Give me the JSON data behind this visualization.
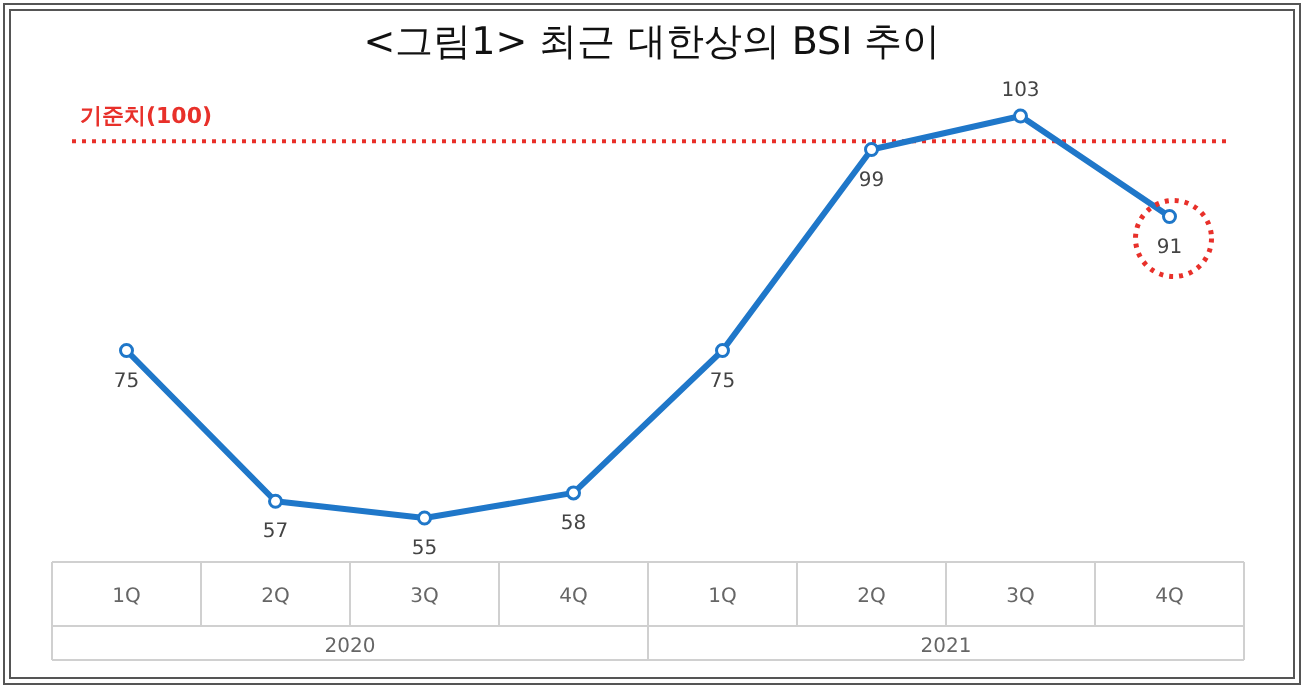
{
  "chart_data": {
    "type": "line",
    "title": "<그림1> 최근 대한상의 BSI 추이",
    "categories": [
      "1Q",
      "2Q",
      "3Q",
      "4Q",
      "1Q",
      "2Q",
      "3Q",
      "4Q"
    ],
    "series": [
      {
        "color": "#1f77c9",
        "values": [
          75,
          57,
          55,
          58,
          75,
          99,
          103,
          91
        ]
      }
    ],
    "annotations": [
      "2020",
      "2021"
    ],
    "ref_lines": [
      {
        "axis": "y",
        "value": 100,
        "label": "기준치(100)",
        "color": "#e8302a",
        "line_style": "dotted"
      }
    ],
    "data_labels": true,
    "marker": "circle"
  }
}
